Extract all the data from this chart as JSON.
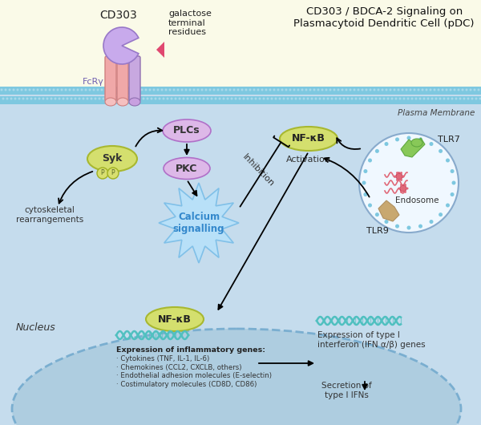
{
  "title": "CD303 / BDCA-2 Signaling on\nPlasmacytoid Dendritic Cell (pDC)",
  "bg_top": "#fafae8",
  "bg_cell": "#c5dced",
  "bg_nucleus": "#aecde0",
  "membrane_color1": "#7ec8e0",
  "membrane_color2": "#a8d8ea",
  "plasma_membrane_label": "Plasma Membrane",
  "nucleus_label": "Nucleus",
  "cd303_label": "CD303",
  "galactose_label": "galactose\nterminal\nresidues",
  "fcry_label": "FcRγ",
  "syk_label": "Syk",
  "plcs_label": "PLCs",
  "pkc_label": "PKC",
  "calcium_label": "Calcium\nsignalling",
  "nfkb_label": "NF-κB",
  "activation_label": "Activation",
  "inhibition_label": "Inhibition",
  "cytoskeletal_label": "cytoskeletal\nrearrangements",
  "endosome_label": "Endosome",
  "tlr7_label": "TLR7",
  "tlr9_label": "TLR9",
  "nfkb_nucleus_label": "NF-κB",
  "inflammatory_title": "Expression of inflammatory genes:",
  "inflammatory_lines": [
    "· Cytokines (TNF, IL-1, IL-6)",
    "· Chemokines (CCL2, CXCLB, others)",
    "· Endothelial adhesion molecules (E-selectin)",
    "· Costimulatory molecules (CD8D, CD86)"
  ],
  "ifn_label": "Expression of type I\ninterferon (IFN α/β) genes",
  "secretion_label": "Secretion of\ntype I IFNs",
  "syk_color": "#d4df6e",
  "plcs_color": "#ddb8e8",
  "pkc_color": "#ddb8e8",
  "nfkb_color": "#d4df6e",
  "receptor_pink": "#f0a8a8",
  "receptor_pink2": "#f5c0c0",
  "receptor_purple": "#c8a8e0",
  "cd303_pac_color": "#c8aaec",
  "galactose_color": "#e04870",
  "calcium_burst_color": "#b8e0f8",
  "calcium_text_color": "#3388cc",
  "dna_color": "#50c0c0",
  "tlr_green": "#88c858",
  "tlr_green2": "#60a840",
  "tlr_red": "#e06878",
  "tlr_tan": "#c8a870",
  "tlr_tan2": "#b09060"
}
